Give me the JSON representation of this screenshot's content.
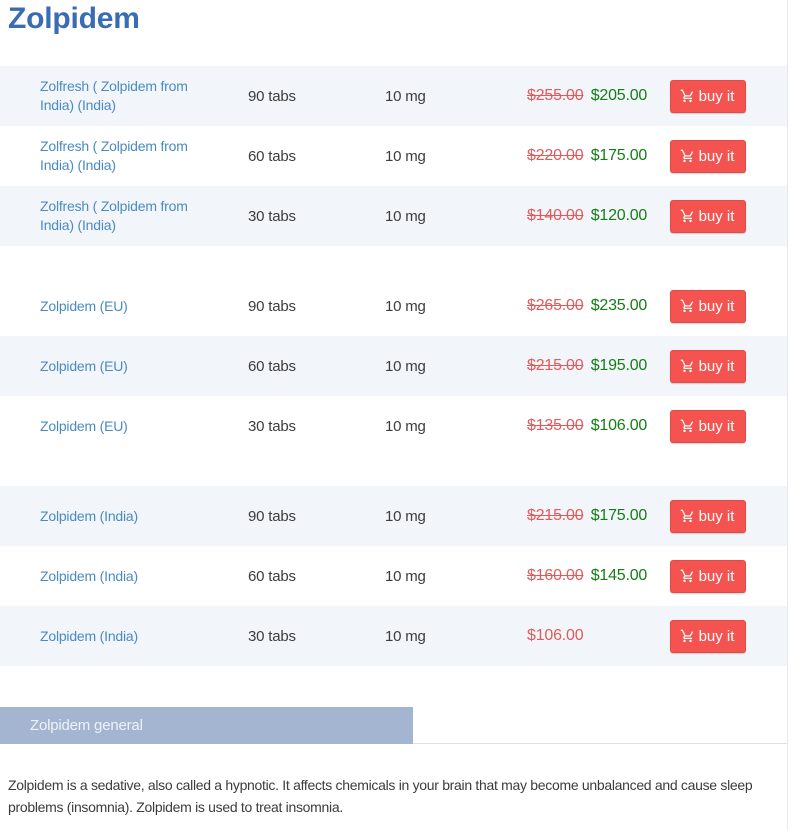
{
  "title": "Zolpidem",
  "products": {
    "buy_button_label": "buy it",
    "dose_note": "10 mg",
    "groups": [
      {
        "rows": [
          {
            "name": "Zolfresh ( Zolpidem from India) (India)",
            "quantity": "90 tabs",
            "dose": "10 mg",
            "old_price": "$255.00",
            "price": "$205.00"
          },
          {
            "name": "Zolfresh ( Zolpidem from India) (India)",
            "quantity": "60 tabs",
            "dose": "10 mg",
            "old_price": "$220.00",
            "price": "$175.00"
          },
          {
            "name": "Zolfresh ( Zolpidem from India) (India)",
            "quantity": "30 tabs",
            "dose": "10 mg",
            "old_price": "$140.00",
            "price": "$120.00"
          }
        ]
      },
      {
        "rows": [
          {
            "name": "Zolpidem (EU)",
            "quantity": "90 tabs",
            "dose": "10 mg",
            "old_price": "$265.00",
            "price": "$235.00"
          },
          {
            "name": "Zolpidem (EU)",
            "quantity": "60 tabs",
            "dose": "10 mg",
            "old_price": "$215.00",
            "price": "$195.00"
          },
          {
            "name": "Zolpidem (EU)",
            "quantity": "30 tabs",
            "dose": "10 mg",
            "old_price": "$135.00",
            "price": "$106.00"
          }
        ]
      },
      {
        "rows": [
          {
            "name": "Zolpidem (India)",
            "quantity": "90 tabs",
            "dose": "10 mg",
            "old_price": "$215.00",
            "price": "$175.00"
          },
          {
            "name": "Zolpidem (India)",
            "quantity": "60 tabs",
            "dose": "10 mg",
            "old_price": "$160.00",
            "price": "$145.00"
          },
          {
            "name": "Zolpidem (India)",
            "quantity": "30 tabs",
            "dose": "10 mg",
            "old_price": null,
            "price": "$106.00"
          }
        ]
      }
    ]
  },
  "info_tab": {
    "label": "Zolpidem general"
  },
  "description": "Zolpidem is a sedative, also called a hypnotic. It affects chemicals in your brain that may become unbalanced and cause sleep problems (insomnia). Zolpidem is used to treat insomnia.",
  "colors": {
    "title_blue": "#3a6cb3",
    "link_blue": "#4a8bc2",
    "row_shade": "#f2f5f9",
    "price_old_red": "#e25b5b",
    "price_new_green": "#157d15",
    "buy_red": "#f4534f",
    "tab_bg": "#a4b5d2"
  }
}
